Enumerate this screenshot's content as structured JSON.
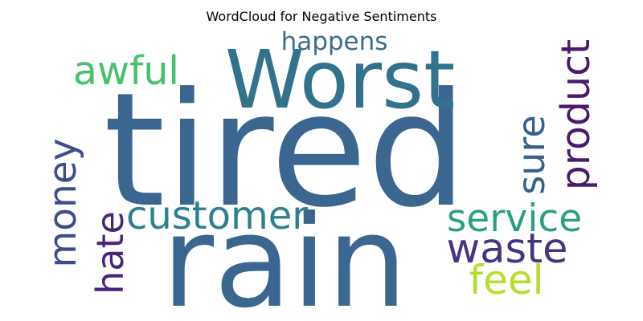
{
  "title": "WordCloud for Negative Sentiments",
  "words": [
    {
      "text": "tired",
      "color": "#3b6690"
    },
    {
      "text": "rain",
      "color": "#3b6690"
    },
    {
      "text": "Worst",
      "color": "#31728d"
    },
    {
      "text": "customer",
      "color": "#2d808e"
    },
    {
      "text": "product",
      "color": "#481a6c"
    },
    {
      "text": "service",
      "color": "#2aa083"
    },
    {
      "text": "waste",
      "color": "#463480"
    },
    {
      "text": "awful",
      "color": "#47c16e"
    },
    {
      "text": "money",
      "color": "#3f4c8a"
    },
    {
      "text": "hate",
      "color": "#482576"
    },
    {
      "text": "sure",
      "color": "#34608d"
    },
    {
      "text": "happens",
      "color": "#3e6d8d"
    },
    {
      "text": "feel",
      "color": "#b5de2b"
    }
  ]
}
